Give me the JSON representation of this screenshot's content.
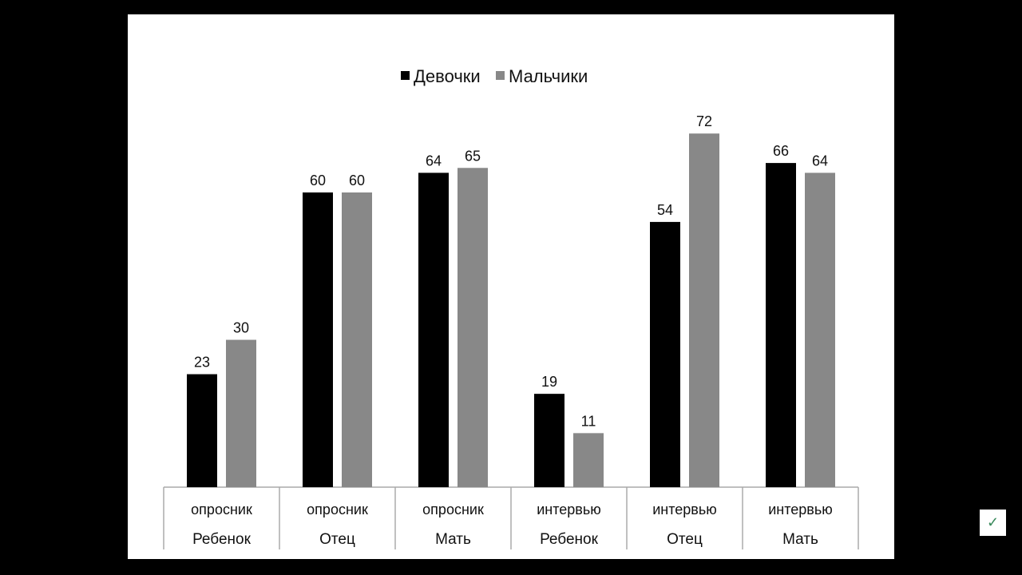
{
  "chart_data": {
    "type": "bar",
    "title": "",
    "categories": [
      [
        "опросник",
        "Ребенок"
      ],
      [
        "опросник",
        "Отец"
      ],
      [
        "опросник",
        "Мать"
      ],
      [
        "интервью",
        "Ребенок"
      ],
      [
        "интервью",
        "Отец"
      ],
      [
        "интервью",
        "Мать"
      ]
    ],
    "series": [
      {
        "name": "Девочки",
        "color": "#000000",
        "values": [
          23,
          60,
          64,
          19,
          54,
          66
        ]
      },
      {
        "name": "Мальчики",
        "color": "#888888",
        "values": [
          30,
          60,
          65,
          11,
          72,
          64
        ]
      }
    ],
    "xlabel": "",
    "ylabel": "",
    "ylim": [
      0,
      75
    ],
    "grid": false,
    "legend": "top-center",
    "data_labels": true
  },
  "overlay": {
    "check_icon": "check-icon"
  }
}
